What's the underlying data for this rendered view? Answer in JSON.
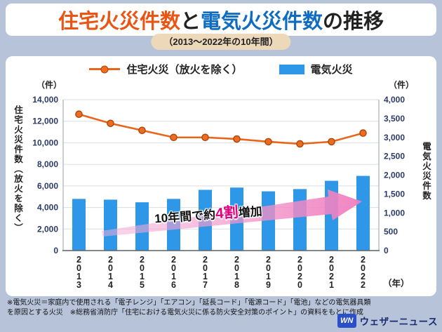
{
  "title": {
    "part_home": "住宅火災件数",
    "part_and": "と",
    "part_electric": "電気火災件数",
    "part_suffix": "の推移"
  },
  "subtitle": "（2013〜2022年の10年間）",
  "chart_data": {
    "type": "combo",
    "categories": [
      "2013",
      "2014",
      "2015",
      "2016",
      "2017",
      "2018",
      "2019",
      "2020",
      "2021",
      "2022"
    ],
    "series": [
      {
        "name": "住宅火災（放火を除く）",
        "type": "line",
        "axis": "left",
        "values": [
          12650,
          11800,
          11150,
          10500,
          10500,
          10350,
          10100,
          9900,
          10100,
          10900
        ]
      },
      {
        "name": "電気火災",
        "type": "bar",
        "axis": "right",
        "values": [
          1370,
          1350,
          1280,
          1370,
          1610,
          1670,
          1570,
          1630,
          1850,
          1980
        ]
      }
    ],
    "left_axis": {
      "unit": "（件）",
      "label": "住宅火災件数（放火を除く）",
      "min": 0,
      "max": 14000,
      "step": 2000
    },
    "right_axis": {
      "unit": "（件）",
      "label": "電気火災件数",
      "min": 0,
      "max": 4000,
      "step": 500
    },
    "x_axis_unit": "（年）",
    "grid": true,
    "legend_position": "top"
  },
  "annotation": {
    "prefix": "10年間で約",
    "highlight": "4割",
    "suffix": "増加"
  },
  "footnote": {
    "line1": "※電気火災＝家庭内で使用される「電子レンジ」「エアコン」「延長コード」「電源コード」「電池」などの電気器具類",
    "line2": "を原因とする火災　※総務省消防庁「住宅における電気火災に係る防火安全対策のポイント」の資料をもとに作成"
  },
  "logo": {
    "mark": "WN",
    "text": "ウェザーニュース"
  },
  "colors": {
    "background": "#b6c3d9",
    "card": "#ffffff",
    "subtitle_bg": "#edd8ba",
    "title_orange": "#ea5514",
    "title_blue": "#0f6cc0",
    "text_dark": "#222222",
    "tick": "#2b3a67",
    "bar": "#2f97e8",
    "line": "#e8651c",
    "line_marker": "#ef6c1e",
    "line_marker_edge": "#a8490f",
    "accent_pink": "#e3007f",
    "arrow_start": "rgba(246,176,216,0.5)",
    "arrow_end": "rgba(240,125,190,0.95)",
    "logo_blue": "#2b4ec9",
    "logo_text": "#1b2a6e"
  }
}
